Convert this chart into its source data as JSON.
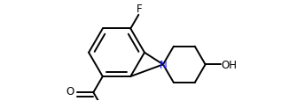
{
  "background_color": "#ffffff",
  "line_color": "#000000",
  "N_color": "#1a1aff",
  "line_width": 1.4,
  "font_size": 8.5,
  "figsize": [
    3.26,
    1.16
  ],
  "dpi": 100,
  "xlim": [
    0,
    3.26
  ],
  "ylim": [
    0,
    1.16
  ]
}
